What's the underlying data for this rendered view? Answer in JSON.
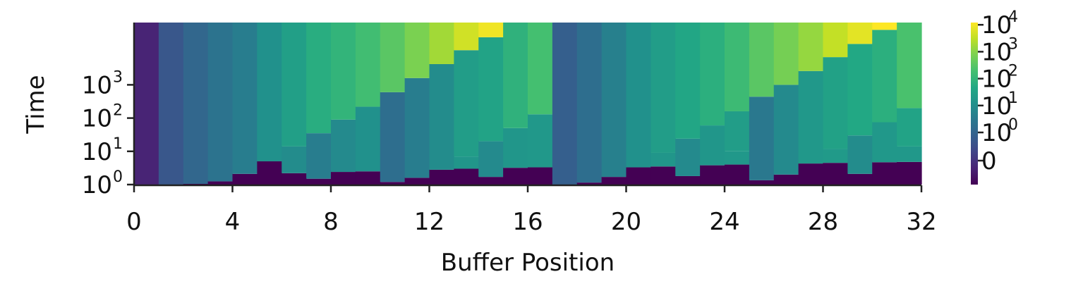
{
  "chart_data": {
    "type": "heatmap",
    "title": "",
    "xlabel": "Buffer Position",
    "ylabel": "Time",
    "x_range": [
      0,
      32
    ],
    "x_ticks": [
      "0",
      "4",
      "8",
      "12",
      "16",
      "20",
      "24",
      "28",
      "32"
    ],
    "y_scale": "log",
    "y_ticks": [
      {
        "base": "10",
        "exp": "0",
        "value": 1
      },
      {
        "base": "10",
        "exp": "1",
        "value": 10
      },
      {
        "base": "10",
        "exp": "2",
        "value": 100
      },
      {
        "base": "10",
        "exp": "3",
        "value": 1000
      }
    ],
    "colorbar": {
      "colormap": "viridis",
      "scale": "symlog",
      "ticks": [
        {
          "label": "0",
          "base": "",
          "exp": "",
          "value": 0
        },
        {
          "label": "",
          "base": "10",
          "exp": "0",
          "value": 1
        },
        {
          "label": "",
          "base": "10",
          "exp": "1",
          "value": 10
        },
        {
          "label": "",
          "base": "10",
          "exp": "2",
          "value": 100
        },
        {
          "label": "",
          "base": "10",
          "exp": "3",
          "value": 1000
        },
        {
          "label": "",
          "base": "10",
          "exp": "4",
          "value": 10000
        }
      ],
      "low_color": "#440154",
      "high_color": "#fde725"
    },
    "columns": [
      {
        "x": 0,
        "bands": [
          {
            "c": 0.1
          }
        ]
      },
      {
        "x": 1,
        "bands": [
          {
            "c": 0.27
          }
        ]
      },
      {
        "x": 2,
        "bands": [
          {
            "c": 0.0,
            "t": 1.05
          },
          {
            "c": 0.33
          }
        ]
      },
      {
        "x": 3,
        "bands": [
          {
            "c": 0.0,
            "t": 1.25
          },
          {
            "c": 0.38
          }
        ]
      },
      {
        "x": 4,
        "bands": [
          {
            "c": 0.0,
            "t": 2.1
          },
          {
            "c": 0.42
          }
        ]
      },
      {
        "x": 5,
        "bands": [
          {
            "c": 0.0,
            "t": 5
          },
          {
            "c": 0.5
          }
        ]
      },
      {
        "x": 6,
        "bands": [
          {
            "c": 0.0,
            "t": 2.2
          },
          {
            "c": 0.48,
            "t": 14
          },
          {
            "c": 0.56
          }
        ]
      },
      {
        "x": 7,
        "bands": [
          {
            "c": 0.0,
            "t": 1.5
          },
          {
            "c": 0.42,
            "t": 35
          },
          {
            "c": 0.62
          }
        ]
      },
      {
        "x": 8,
        "bands": [
          {
            "c": 0.0,
            "t": 2.4
          },
          {
            "c": 0.47,
            "t": 90
          },
          {
            "c": 0.65
          }
        ]
      },
      {
        "x": 9,
        "bands": [
          {
            "c": 0.0,
            "t": 2.5
          },
          {
            "c": 0.5,
            "t": 220
          },
          {
            "c": 0.69
          }
        ]
      },
      {
        "x": 10,
        "bands": [
          {
            "c": 0.0,
            "t": 1.2
          },
          {
            "c": 0.36,
            "t": 600
          },
          {
            "c": 0.74
          }
        ]
      },
      {
        "x": 11,
        "bands": [
          {
            "c": 0.0,
            "t": 1.6
          },
          {
            "c": 0.42,
            "t": 1600
          },
          {
            "c": 0.8
          }
        ]
      },
      {
        "x": 12,
        "bands": [
          {
            "c": 0.0,
            "t": 2.8
          },
          {
            "c": 0.48,
            "t": 4200
          },
          {
            "c": 0.86
          }
        ]
      },
      {
        "x": 13,
        "bands": [
          {
            "c": 0.0,
            "t": 3
          },
          {
            "c": 0.52,
            "t": 7
          },
          {
            "c": 0.55,
            "t": 11000
          },
          {
            "c": 0.93
          }
        ]
      },
      {
        "x": 14,
        "bands": [
          {
            "c": 0.0,
            "t": 1.7
          },
          {
            "c": 0.47,
            "t": 20
          },
          {
            "c": 0.58,
            "t": 27000
          },
          {
            "c": 0.98
          }
        ]
      },
      {
        "x": 15,
        "bands": [
          {
            "c": 0.0,
            "t": 3.2
          },
          {
            "c": 0.52,
            "t": 50
          },
          {
            "c": 0.64
          }
        ]
      },
      {
        "x": 16,
        "bands": [
          {
            "c": 0.0,
            "t": 3.3
          },
          {
            "c": 0.53,
            "t": 130
          },
          {
            "c": 0.7
          }
        ]
      },
      {
        "x": 17,
        "bands": [
          {
            "c": 0.3
          }
        ]
      },
      {
        "x": 18,
        "bands": [
          {
            "c": 0.0,
            "t": 1.15
          },
          {
            "c": 0.36
          }
        ]
      },
      {
        "x": 19,
        "bands": [
          {
            "c": 0.0,
            "t": 1.7
          },
          {
            "c": 0.43
          }
        ]
      },
      {
        "x": 20,
        "bands": [
          {
            "c": 0.0,
            "t": 3.3
          },
          {
            "c": 0.5
          }
        ]
      },
      {
        "x": 21,
        "bands": [
          {
            "c": 0.0,
            "t": 3.5
          },
          {
            "c": 0.52,
            "t": 9
          },
          {
            "c": 0.55
          }
        ]
      },
      {
        "x": 22,
        "bands": [
          {
            "c": 0.0,
            "t": 1.8
          },
          {
            "c": 0.47,
            "t": 24
          },
          {
            "c": 0.59
          }
        ]
      },
      {
        "x": 23,
        "bands": [
          {
            "c": 0.0,
            "t": 3.8
          },
          {
            "c": 0.52,
            "t": 60
          },
          {
            "c": 0.63
          }
        ]
      },
      {
        "x": 24,
        "bands": [
          {
            "c": 0.0,
            "t": 4
          },
          {
            "c": 0.53,
            "t": 10
          },
          {
            "c": 0.55,
            "t": 160
          },
          {
            "c": 0.68
          }
        ]
      },
      {
        "x": 25,
        "bands": [
          {
            "c": 0.0,
            "t": 1.35
          },
          {
            "c": 0.4,
            "t": 440
          },
          {
            "c": 0.74
          }
        ]
      },
      {
        "x": 26,
        "bands": [
          {
            "c": 0.0,
            "t": 2
          },
          {
            "c": 0.47,
            "t": 1000
          },
          {
            "c": 0.79
          }
        ]
      },
      {
        "x": 27,
        "bands": [
          {
            "c": 0.0,
            "t": 4.3
          },
          {
            "c": 0.53,
            "t": 2600
          },
          {
            "c": 0.84
          }
        ]
      },
      {
        "x": 28,
        "bands": [
          {
            "c": 0.0,
            "t": 4.5
          },
          {
            "c": 0.54,
            "t": 12
          },
          {
            "c": 0.57,
            "t": 6800
          },
          {
            "c": 0.91
          }
        ]
      },
      {
        "x": 29,
        "bands": [
          {
            "c": 0.0,
            "t": 2.1
          },
          {
            "c": 0.48,
            "t": 30
          },
          {
            "c": 0.6,
            "t": 17000
          },
          {
            "c": 0.96
          }
        ]
      },
      {
        "x": 30,
        "bands": [
          {
            "c": 0.0,
            "t": 4.7
          },
          {
            "c": 0.53,
            "t": 75
          },
          {
            "c": 0.63,
            "t": 45000
          },
          {
            "c": 1.0
          }
        ]
      },
      {
        "x": 31,
        "bands": [
          {
            "c": 0.0,
            "t": 4.8
          },
          {
            "c": 0.53,
            "t": 14
          },
          {
            "c": 0.58,
            "t": 200
          },
          {
            "c": 0.71
          }
        ]
      }
    ]
  }
}
